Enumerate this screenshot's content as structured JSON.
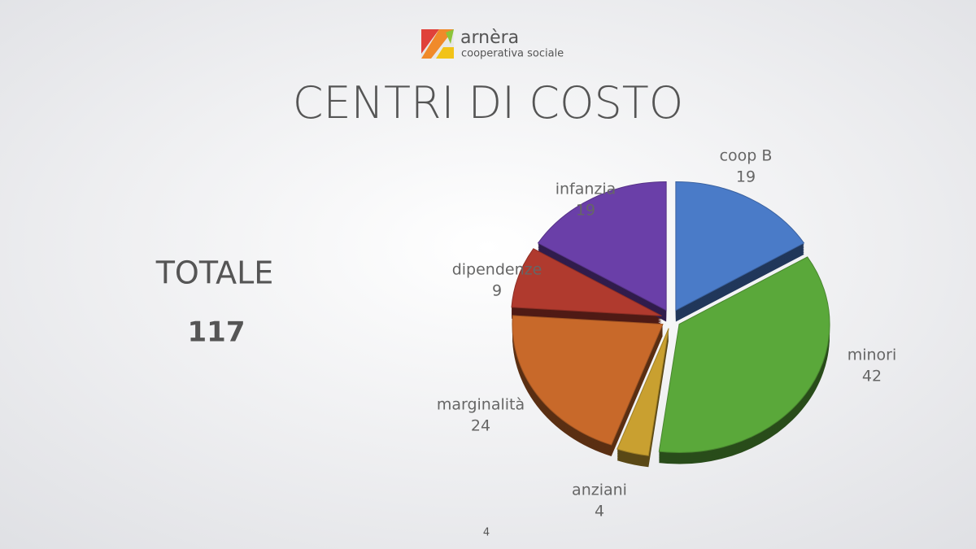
{
  "logo": {
    "name": "arnèra",
    "tagline": "cooperativa sociale"
  },
  "chart_data": {
    "type": "pie",
    "title": "CENTRI DI COSTO",
    "categories": [
      "coop B",
      "minori",
      "anziani",
      "marginalità",
      "dipendenze",
      "infanzia"
    ],
    "values": [
      19,
      42,
      4,
      24,
      9,
      19
    ],
    "colors": [
      "#4a7bc8",
      "#5aa83a",
      "#c9a030",
      "#c8692a",
      "#b03a2e",
      "#6a3fa8"
    ]
  },
  "summary": {
    "label": "TOTALE",
    "value": 117
  },
  "page_number": 4
}
